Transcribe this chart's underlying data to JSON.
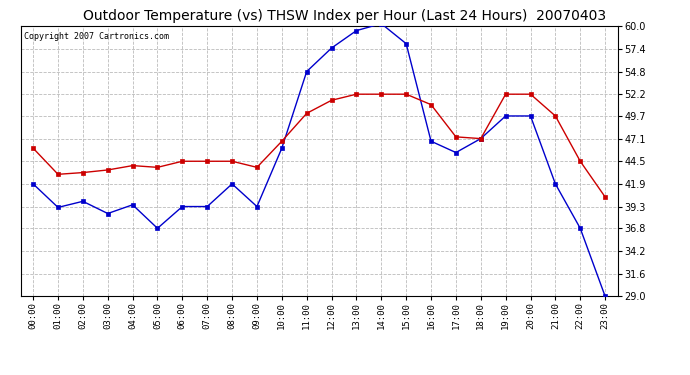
{
  "title": "Outdoor Temperature (vs) THSW Index per Hour (Last 24 Hours)  20070403",
  "copyright": "Copyright 2007 Cartronics.com",
  "hours": [
    0,
    1,
    2,
    3,
    4,
    5,
    6,
    7,
    8,
    9,
    10,
    11,
    12,
    13,
    14,
    15,
    16,
    17,
    18,
    19,
    20,
    21,
    22,
    23
  ],
  "blue_data": [
    41.9,
    39.2,
    39.9,
    38.5,
    39.5,
    36.8,
    39.3,
    39.3,
    41.9,
    39.3,
    46.0,
    54.8,
    57.5,
    59.5,
    60.3,
    58.0,
    46.8,
    45.5,
    47.1,
    49.7,
    49.7,
    41.9,
    36.8,
    29.0
  ],
  "red_data": [
    46.0,
    43.0,
    43.2,
    43.5,
    44.0,
    43.8,
    44.5,
    44.5,
    44.5,
    43.8,
    46.8,
    50.0,
    51.5,
    52.2,
    52.2,
    52.2,
    51.0,
    47.3,
    47.1,
    52.2,
    52.2,
    49.7,
    44.5,
    40.4
  ],
  "ylim": [
    29.0,
    60.0
  ],
  "yticks": [
    29.0,
    31.6,
    34.2,
    36.8,
    39.3,
    41.9,
    44.5,
    47.1,
    49.7,
    52.2,
    54.8,
    57.4,
    60.0
  ],
  "blue_color": "#0000cc",
  "red_color": "#cc0000",
  "bg_color": "#ffffff",
  "grid_color": "#bbbbbb",
  "title_fontsize": 10,
  "copyright_fontsize": 6,
  "tick_fontsize": 6.5,
  "ytick_fontsize": 7
}
